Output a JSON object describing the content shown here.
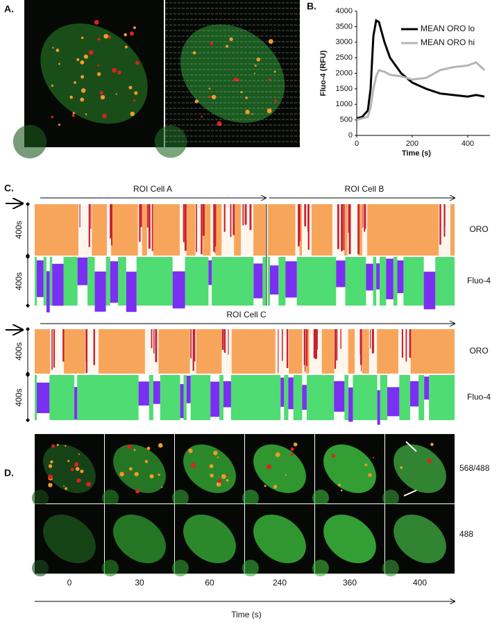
{
  "panel_a": {
    "label": "A."
  },
  "chart_data": {
    "type": "line",
    "label": "B.",
    "xlabel": "Time (s)",
    "ylabel": "Fluo-4 (RFU)",
    "x": [
      0,
      20,
      40,
      50,
      60,
      70,
      80,
      100,
      120,
      160,
      200,
      250,
      300,
      350,
      400,
      430,
      460
    ],
    "series": [
      {
        "name": "MEAN ORO lo",
        "color": "#000000",
        "values": [
          550,
          600,
          800,
          1500,
          3200,
          3700,
          3650,
          3000,
          2500,
          2000,
          1700,
          1500,
          1350,
          1300,
          1250,
          1300,
          1250
        ]
      },
      {
        "name": "MEAN ORO hi",
        "color": "#b4b4b4",
        "values": [
          500,
          550,
          600,
          900,
          1500,
          1900,
          2100,
          2050,
          1950,
          1900,
          1800,
          1850,
          2100,
          2200,
          2250,
          2350,
          2100
        ]
      }
    ],
    "xlim": [
      0,
      480
    ],
    "ylim": [
      0,
      4000
    ],
    "xticks": [
      0,
      200,
      400
    ],
    "yticks": [
      0,
      500,
      1000,
      1500,
      2000,
      2500,
      3000,
      3500,
      4000
    ],
    "legend": "upper right",
    "grid": false
  },
  "panel_c": {
    "label": "C.",
    "rois": [
      "ROI Cell A",
      "ROI Cell B",
      "ROI Cell C"
    ],
    "durations": [
      "400s",
      "400s",
      "400s",
      "400s"
    ],
    "channels": [
      "ORO",
      "Fluo-4",
      "ORO",
      "Fluo-4"
    ]
  },
  "panel_d": {
    "label": "D.",
    "rows": [
      "568/488",
      "488"
    ],
    "times": [
      "0",
      "30",
      "60",
      "240",
      "360",
      "400"
    ],
    "axis_label": "Time (s)"
  }
}
